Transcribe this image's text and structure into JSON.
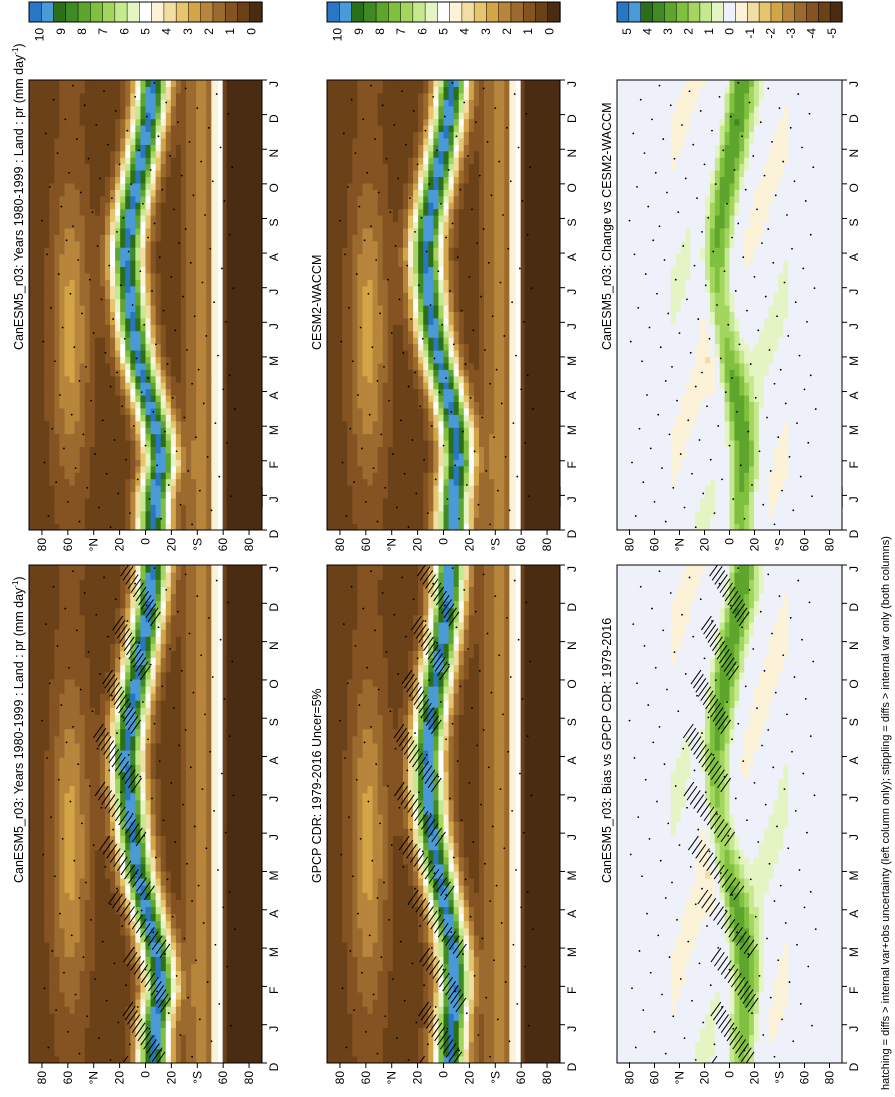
{
  "footnote": "hatching = diffs > internal var+obs uncertainty (left column only); stippling = diffs > internal var only (both columns)",
  "colors": {
    "levels_main": [
      "#4a2c12",
      "#6b4118",
      "#855322",
      "#9a6a2e",
      "#b7853b",
      "#d3a547",
      "#e7c56e",
      "#f2dda2",
      "#fbf2d8",
      "#ffffff",
      "#e4f4c2",
      "#c5e890",
      "#a4d65f",
      "#80c03f",
      "#5ea52e",
      "#3f8a22",
      "#2c6f19",
      "#4a9ad8",
      "#2877c5"
    ],
    "levels_diff": [
      "#4a2c12",
      "#6b4118",
      "#855322",
      "#9a6a2e",
      "#b7853b",
      "#d3a547",
      "#e7c56e",
      "#f2dda2",
      "#fbf2d8",
      "#eef1fa",
      "#e4f4c2",
      "#c5e890",
      "#a4d65f",
      "#80c03f",
      "#5ea52e",
      "#3f8a22",
      "#2c6f19",
      "#4a9ad8",
      "#2877c5"
    ]
  },
  "chart_data": [
    {
      "type": "heatmap",
      "panel": "left-top",
      "title": "CanESM5_r03: Years 1980-1999 : Land : pr (mm day",
      "title_sup": "-1",
      "title_tail": ")",
      "months": [
        "D",
        "J",
        "F",
        "M",
        "A",
        "M",
        "J",
        "J",
        "A",
        "S",
        "O",
        "N",
        "D",
        "J"
      ],
      "lat_ticks": [
        "80",
        "60",
        "°N",
        "20",
        "0",
        "20",
        "°S",
        "60",
        "80"
      ],
      "colorbar_ticks": [
        "10",
        "9",
        "8",
        "7",
        "6",
        "5",
        "4",
        "3",
        "2",
        "1",
        "0"
      ],
      "itcz_lat": [
        -6,
        -7,
        -12,
        -8,
        -1,
        6,
        10,
        13,
        15,
        12,
        7,
        2,
        -3,
        -6
      ],
      "style": "main",
      "overlay": "hatch"
    },
    {
      "type": "heatmap",
      "panel": "right-top",
      "title": "CanESM5_r03: Years 1980-1999 : Land : pr (mm day",
      "title_sup": "-1",
      "title_tail": ")",
      "months": [
        "D",
        "J",
        "F",
        "M",
        "A",
        "M",
        "J",
        "J",
        "A",
        "S",
        "O",
        "N",
        "D",
        "J"
      ],
      "lat_ticks": [
        "80",
        "60",
        "°N",
        "20",
        "0",
        "20",
        "°S",
        "60",
        "80"
      ],
      "colorbar_ticks": [
        "10",
        "9",
        "8",
        "7",
        "6",
        "5",
        "4",
        "3",
        "2",
        "1",
        "0"
      ],
      "itcz_lat": [
        -6,
        -7,
        -12,
        -8,
        -1,
        6,
        10,
        13,
        15,
        12,
        7,
        2,
        -3,
        -6
      ],
      "style": "main",
      "overlay": "stipple"
    },
    {
      "type": "heatmap",
      "panel": "left-middle",
      "title": "GPCP CDR: 1979-2016 Uncer=5%",
      "title_sup": "",
      "title_tail": "",
      "months": [
        "D",
        "J",
        "F",
        "M",
        "A",
        "M",
        "J",
        "J",
        "A",
        "S",
        "O",
        "N",
        "D",
        "J"
      ],
      "lat_ticks": [
        "80",
        "60",
        "°N",
        "20",
        "0",
        "20",
        "°S",
        "60",
        "80"
      ],
      "colorbar_ticks": [
        "10",
        "9",
        "8",
        "7",
        "6",
        "5",
        "4",
        "3",
        "2",
        "1",
        "0"
      ],
      "itcz_lat": [
        -5,
        -6,
        -9,
        -7,
        -2,
        4,
        9,
        12,
        13,
        10,
        6,
        1,
        -3,
        -5
      ],
      "style": "main",
      "overlay": "hatch"
    },
    {
      "type": "heatmap",
      "panel": "right-middle",
      "title": "CESM2-WACCM",
      "title_sup": "",
      "title_tail": "",
      "months": [
        "D",
        "J",
        "F",
        "M",
        "A",
        "M",
        "J",
        "J",
        "A",
        "S",
        "O",
        "N",
        "D",
        "J"
      ],
      "lat_ticks": [
        "80",
        "60",
        "°N",
        "20",
        "0",
        "20",
        "°S",
        "60",
        "80"
      ],
      "colorbar_ticks": [
        "10",
        "9",
        "8",
        "7",
        "6",
        "5",
        "4",
        "3",
        "2",
        "1",
        "0"
      ],
      "itcz_lat": [
        -7,
        -8,
        -11,
        -9,
        -3,
        4,
        9,
        12,
        14,
        11,
        6,
        1,
        -4,
        -7
      ],
      "style": "main",
      "overlay": "stipple"
    },
    {
      "type": "heatmap",
      "panel": "left-bottom",
      "title": "CanESM5_r03: Bias vs GPCP CDR: 1979-2016",
      "title_sup": "",
      "title_tail": "",
      "months": [
        "D",
        "J",
        "F",
        "M",
        "A",
        "M",
        "J",
        "J",
        "A",
        "S",
        "O",
        "N",
        "D",
        "J"
      ],
      "lat_ticks": [
        "80",
        "60",
        "°N",
        "20",
        "0",
        "20",
        "°S",
        "60",
        "80"
      ],
      "colorbar_ticks": [
        "5",
        "4",
        "3",
        "2",
        "1",
        "0",
        "-1",
        "-2",
        "-3",
        "-4",
        "-5"
      ],
      "itcz_lat": [
        -10,
        -11,
        -14,
        -11,
        -5,
        2,
        7,
        10,
        11,
        8,
        4,
        -1,
        -7,
        -10
      ],
      "style": "diff",
      "overlay": "hatch"
    },
    {
      "type": "heatmap",
      "panel": "right-bottom",
      "title": "CanESM5_r03: Change vs CESM2-WACCM",
      "title_sup": "",
      "title_tail": "",
      "months": [
        "D",
        "J",
        "F",
        "M",
        "A",
        "M",
        "J",
        "J",
        "A",
        "S",
        "O",
        "N",
        "D",
        "J"
      ],
      "lat_ticks": [
        "80",
        "60",
        "°N",
        "20",
        "0",
        "20",
        "°S",
        "60",
        "80"
      ],
      "colorbar_ticks": [
        "5",
        "4",
        "3",
        "2",
        "1",
        "0",
        "-1",
        "-2",
        "-3",
        "-4",
        "-5"
      ],
      "itcz_lat": [
        -9,
        -10,
        -12,
        -9,
        -4,
        2,
        6,
        9,
        10,
        7,
        3,
        -2,
        -6,
        -9
      ],
      "style": "diff",
      "overlay": "stipple"
    }
  ]
}
